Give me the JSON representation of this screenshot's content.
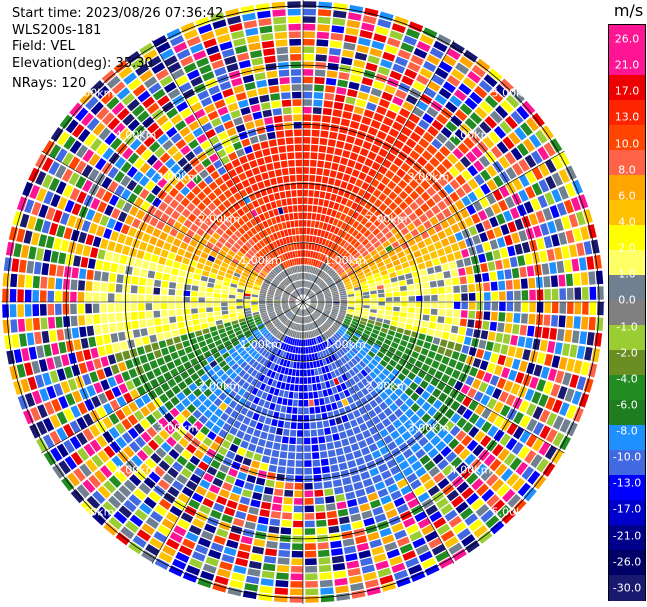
{
  "info": {
    "start_time": "Start time: 2023/08/26 07:36:42",
    "instrument": "WLS200s-181",
    "field": "Field: VEL",
    "elevation": "Elevation(deg): 35.30",
    "nrays": "NRays: 120"
  },
  "colorbar": {
    "unit": "m/s",
    "ticks": [
      "26.0",
      "21.0",
      "17.0",
      "13.0",
      "10.0",
      "8.0",
      "6.0",
      "4.0",
      "2.0",
      "1.0",
      "0.0",
      "-1.0",
      "-2.0",
      "-4.0",
      "-6.0",
      "-8.0",
      "-10.0",
      "-13.0",
      "-17.0",
      "-21.0",
      "-26.0",
      "-30.0"
    ],
    "colors": [
      "#ff1493",
      "#ff1493",
      "#ee0000",
      "#ff2400",
      "#ff4500",
      "#ff6347",
      "#ffa500",
      "#ffc000",
      "#ffff00",
      "#ffff66",
      "#708090",
      "#808080",
      "#9acd32",
      "#6b8e23",
      "#228b22",
      "#1e7d1e",
      "#1e90ff",
      "#4169e1",
      "#0000ff",
      "#0000cd",
      "#00008b",
      "#000066",
      "#191970"
    ]
  },
  "chart_data": {
    "type": "ppi",
    "field": "VEL",
    "unit": "m/s",
    "nrays": 120,
    "elevation_deg": 35.3,
    "range_rings_km": [
      1.0,
      2.0,
      3.0,
      4.0,
      5.0
    ],
    "ring_labels": [
      "1.00km",
      "2.00km",
      "3.00km",
      "4.00km",
      "5.00km"
    ],
    "max_range_km": 5.1,
    "radial_spokes_deg": [
      0,
      30,
      60,
      90,
      120,
      150,
      180,
      210,
      240,
      270,
      300,
      330
    ],
    "velocity_regions": [
      {
        "sector": "north",
        "range_km": [
          0.2,
          3.0
        ],
        "approx_value": 12.0
      },
      {
        "sector": "south",
        "range_km": [
          0.2,
          3.0
        ],
        "approx_value": -9.0
      },
      {
        "sector": "near-field ring",
        "range_km": [
          0.0,
          0.6
        ],
        "approx_value": 0.0
      },
      {
        "sector": "east/west",
        "range_km": [
          0.5,
          3.0
        ],
        "approx_value": 2.0
      },
      {
        "sector": "outer noise",
        "range_km": [
          3.0,
          5.1
        ],
        "approx_value": null
      }
    ]
  }
}
